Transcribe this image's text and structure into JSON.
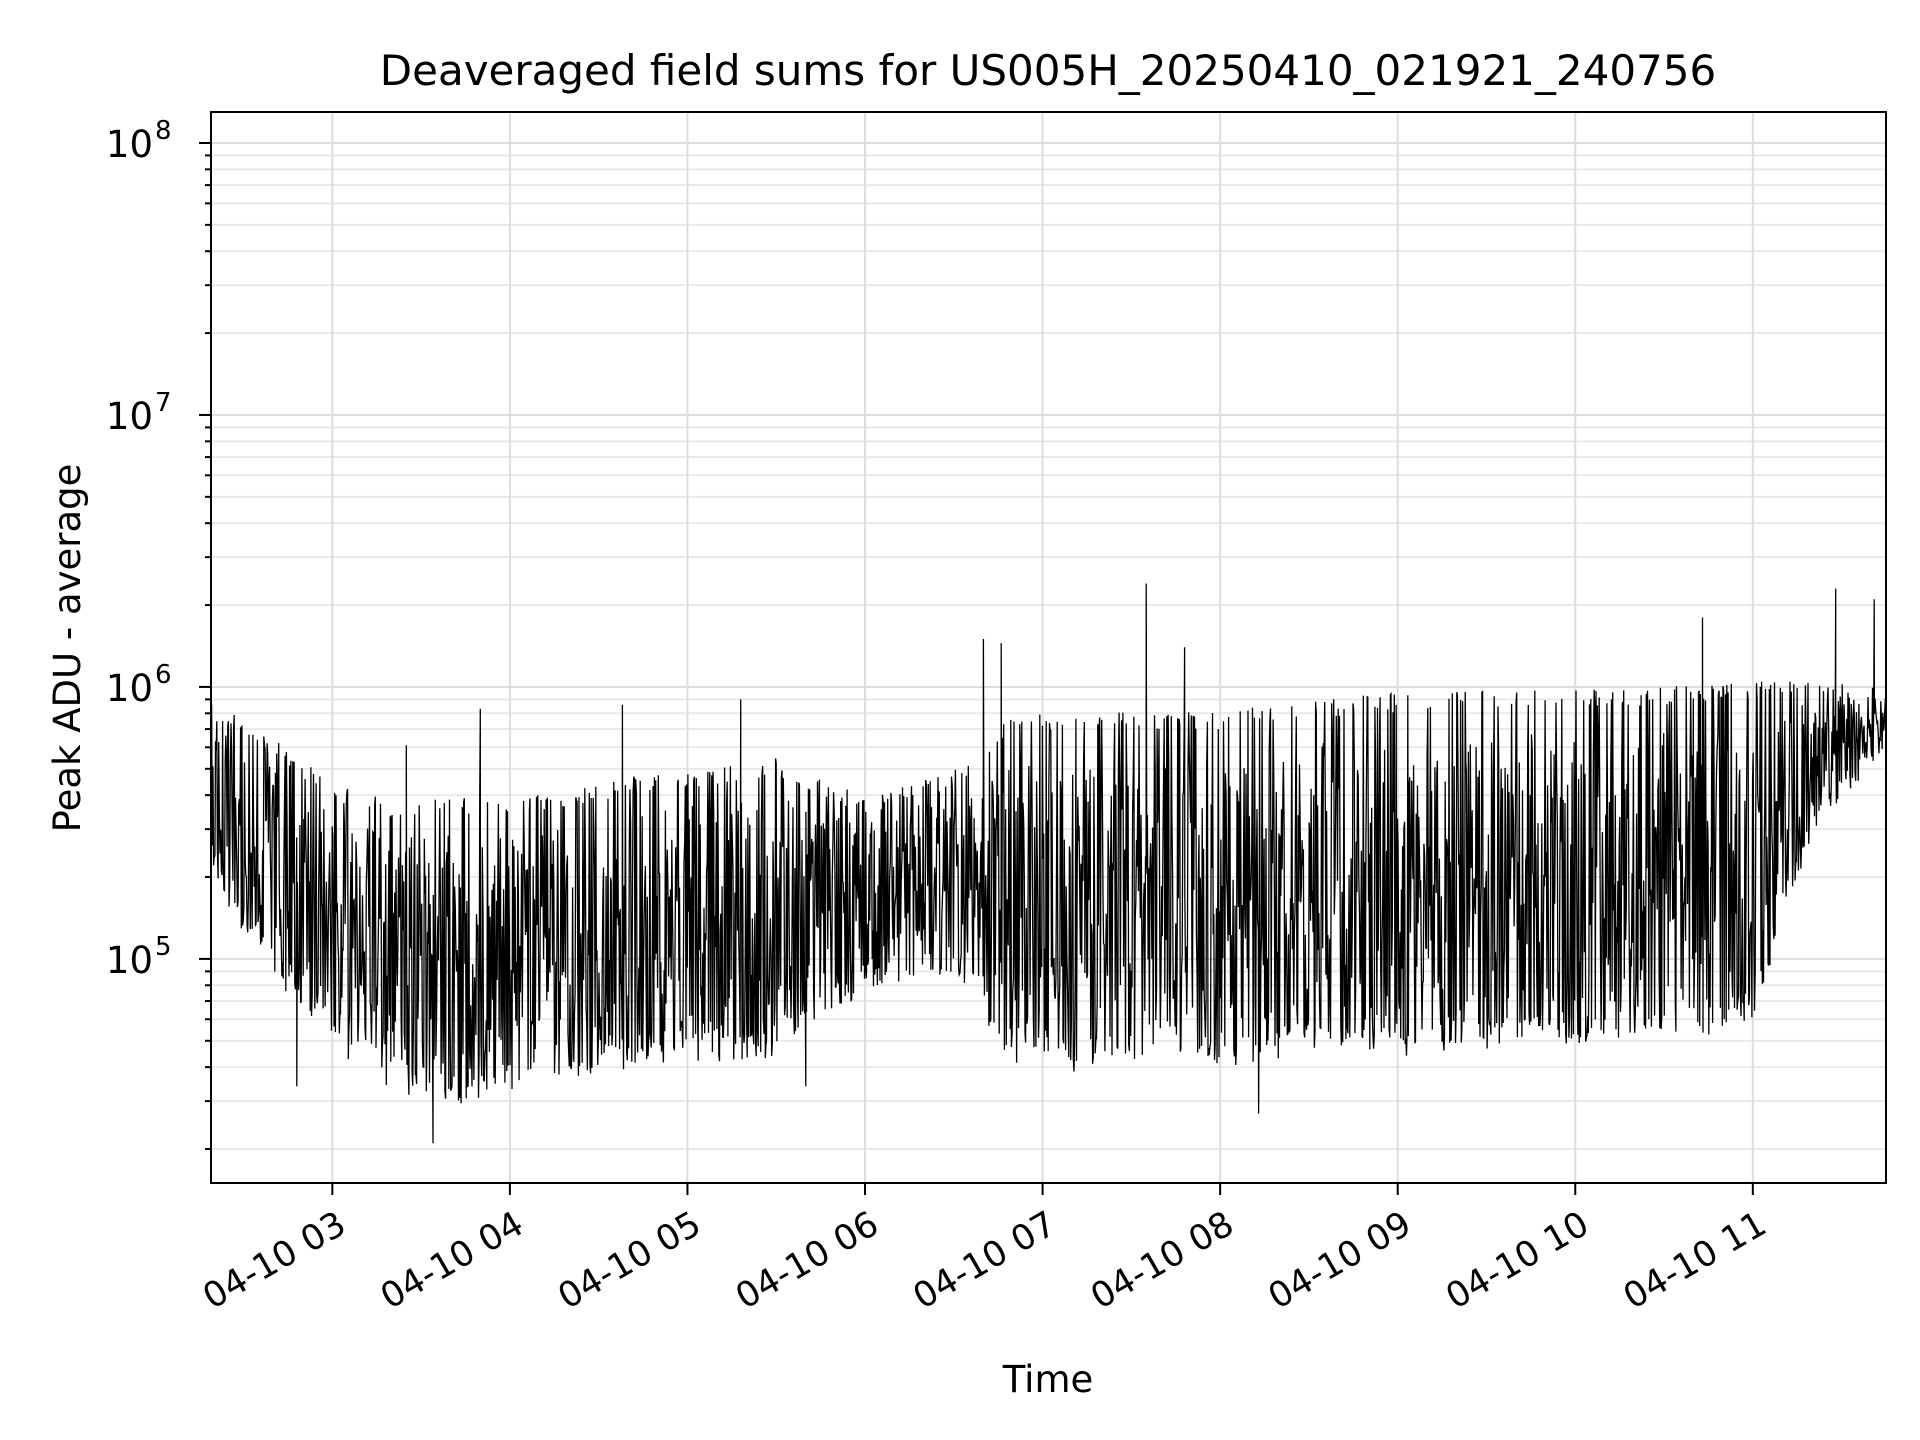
{
  "chart_data": {
    "type": "line",
    "title": "Deaveraged field sums for US005H_20250410_021921_240756",
    "xlabel": "Time",
    "ylabel": "Peak ADU - average",
    "yscale": "log",
    "ylim": [
      15000,
      130000000
    ],
    "xlim": [
      "2025-04-10 02:19",
      "2025-04-10 11:45"
    ],
    "grid": true,
    "x_ticks": [
      {
        "value": "2025-04-10 03:00",
        "label": "04-10 03"
      },
      {
        "value": "2025-04-10 04:00",
        "label": "04-10 04"
      },
      {
        "value": "2025-04-10 05:00",
        "label": "04-10 05"
      },
      {
        "value": "2025-04-10 06:00",
        "label": "04-10 06"
      },
      {
        "value": "2025-04-10 07:00",
        "label": "04-10 07"
      },
      {
        "value": "2025-04-10 08:00",
        "label": "04-10 08"
      },
      {
        "value": "2025-04-10 09:00",
        "label": "04-10 09"
      },
      {
        "value": "2025-04-10 10:00",
        "label": "04-10 10"
      },
      {
        "value": "2025-04-10 11:00",
        "label": "04-10 11"
      }
    ],
    "y_ticks": [
      {
        "value": 100000,
        "base": "10",
        "exp": "5"
      },
      {
        "value": 1000000,
        "base": "10",
        "exp": "6"
      },
      {
        "value": 10000000,
        "base": "10",
        "exp": "7"
      },
      {
        "value": 100000000,
        "base": "10",
        "exp": "8"
      }
    ],
    "series": [
      {
        "color": "#000000",
        "anchors": [
          {
            "x": "2025-04-10 02:19",
            "low": 200000,
            "high": 900000
          },
          {
            "x": "2025-04-10 02:40",
            "low": 90000,
            "high": 650000
          },
          {
            "x": "2025-04-10 03:00",
            "low": 50000,
            "high": 450000
          },
          {
            "x": "2025-04-10 03:20",
            "low": 35000,
            "high": 380000
          },
          {
            "x": "2025-04-10 03:40",
            "low": 30000,
            "high": 400000
          },
          {
            "x": "2025-04-10 04:00",
            "low": 35000,
            "high": 380000
          },
          {
            "x": "2025-04-10 04:30",
            "low": 40000,
            "high": 450000
          },
          {
            "x": "2025-04-10 05:00",
            "low": 45000,
            "high": 500000
          },
          {
            "x": "2025-04-10 05:30",
            "low": 45000,
            "high": 550000
          },
          {
            "x": "2025-04-10 06:00",
            "low": 80000,
            "high": 400000
          },
          {
            "x": "2025-04-10 06:30",
            "low": 90000,
            "high": 500000
          },
          {
            "x": "2025-04-10 06:50",
            "low": 45000,
            "high": 800000
          },
          {
            "x": "2025-04-10 07:20",
            "low": 40000,
            "high": 820000
          },
          {
            "x": "2025-04-10 07:40",
            "low": 50000,
            "high": 800000
          },
          {
            "x": "2025-04-10 08:00",
            "low": 40000,
            "high": 820000
          },
          {
            "x": "2025-04-10 08:30",
            "low": 50000,
            "high": 900000
          },
          {
            "x": "2025-04-10 09:00",
            "low": 48000,
            "high": 950000
          },
          {
            "x": "2025-04-10 09:30",
            "low": 50000,
            "high": 980000
          },
          {
            "x": "2025-04-10 10:00",
            "low": 50000,
            "high": 1000000
          },
          {
            "x": "2025-04-10 10:30",
            "low": 55000,
            "high": 1000000
          },
          {
            "x": "2025-04-10 11:00",
            "low": 60000,
            "high": 1050000
          },
          {
            "x": "2025-04-10 11:20",
            "low": 300000,
            "high": 1050000
          },
          {
            "x": "2025-04-10 11:45",
            "low": 600000,
            "high": 1000000
          }
        ],
        "spikes": [
          {
            "x": "2025-04-10 02:19",
            "y": 930000
          },
          {
            "x": "2025-04-10 02:48",
            "y": 34000
          },
          {
            "x": "2025-04-10 03:25",
            "y": 610000
          },
          {
            "x": "2025-04-10 03:34",
            "y": 21000
          },
          {
            "x": "2025-04-10 03:50",
            "y": 830000
          },
          {
            "x": "2025-04-10 04:38",
            "y": 860000
          },
          {
            "x": "2025-04-10 05:18",
            "y": 900000
          },
          {
            "x": "2025-04-10 05:40",
            "y": 34000
          },
          {
            "x": "2025-04-10 06:40",
            "y": 1500000
          },
          {
            "x": "2025-04-10 06:46",
            "y": 1450000
          },
          {
            "x": "2025-04-10 07:35",
            "y": 2400000
          },
          {
            "x": "2025-04-10 07:48",
            "y": 1400000
          },
          {
            "x": "2025-04-10 08:13",
            "y": 27000
          },
          {
            "x": "2025-04-10 10:43",
            "y": 1800000
          },
          {
            "x": "2025-04-10 11:28",
            "y": 2300000
          },
          {
            "x": "2025-04-10 11:41",
            "y": 2100000
          }
        ]
      }
    ]
  }
}
